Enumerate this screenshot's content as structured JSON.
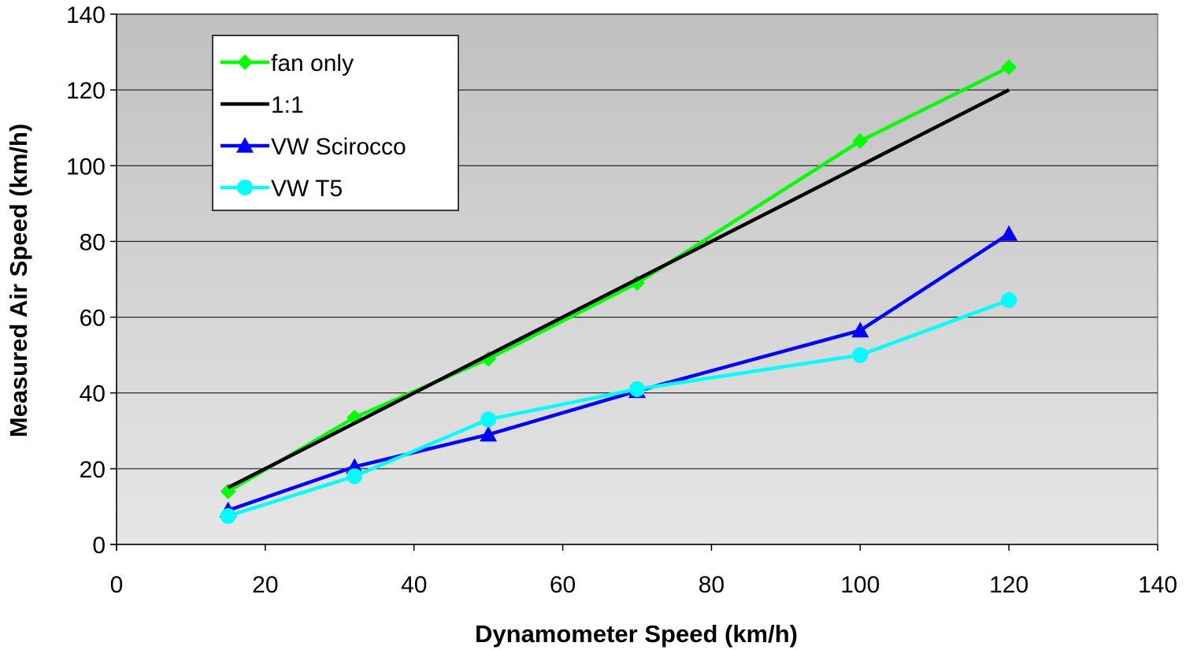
{
  "chart_data": {
    "type": "line",
    "title": "",
    "xlabel": "Dynamometer Speed (km/h)",
    "ylabel": "Measured Air Speed (km/h)",
    "xlim": [
      0,
      140
    ],
    "ylim": [
      0,
      140
    ],
    "xticks": [
      0,
      20,
      40,
      60,
      80,
      100,
      120,
      140
    ],
    "yticks": [
      0,
      20,
      40,
      60,
      80,
      100,
      120,
      140
    ],
    "grid": "horizontal",
    "legend_position": "top-left",
    "background": "gradient gray",
    "series": [
      {
        "name": "fan only",
        "color": "#00ff00",
        "marker": "diamond",
        "x": [
          15,
          32,
          50,
          70,
          100,
          120
        ],
        "y": [
          14,
          33.5,
          49,
          69,
          106.5,
          126
        ]
      },
      {
        "name": "1:1",
        "color": "#000000",
        "marker": "none",
        "x": [
          15,
          120
        ],
        "y": [
          15,
          120
        ]
      },
      {
        "name": "VW Scirocco",
        "color": "#0000ff",
        "marker": "triangle",
        "x": [
          15,
          32,
          50,
          70,
          100,
          120
        ],
        "y": [
          9,
          20.5,
          29,
          40.5,
          56.5,
          82
        ]
      },
      {
        "name": "VW T5",
        "color": "#00ffff",
        "marker": "circle",
        "x": [
          15,
          32,
          50,
          70,
          100,
          120
        ],
        "y": [
          7.5,
          18,
          33,
          41,
          50,
          64.5
        ]
      }
    ]
  }
}
